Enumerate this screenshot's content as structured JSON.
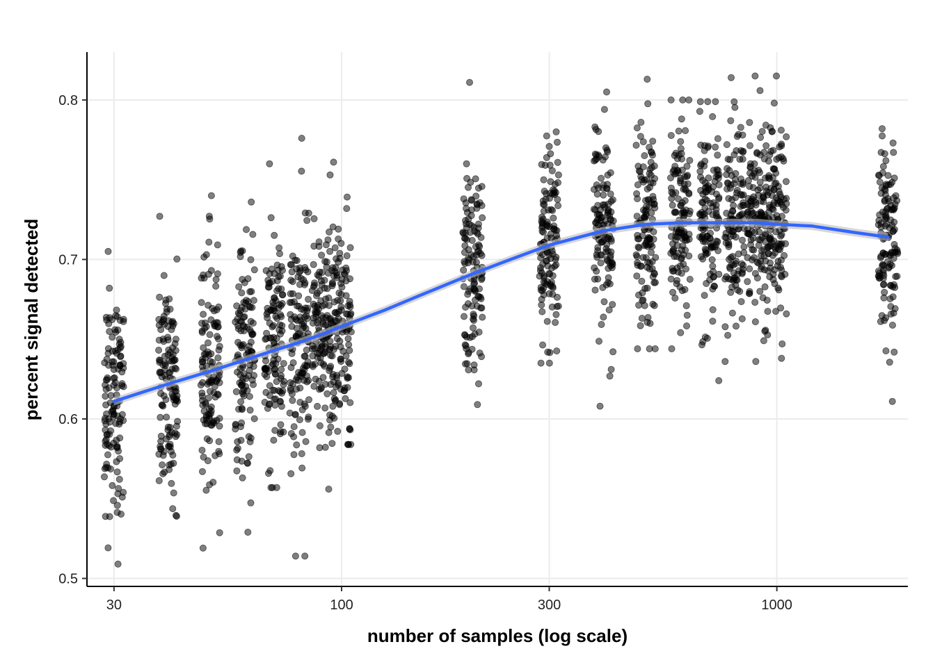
{
  "chart_data": {
    "type": "scatter",
    "title": "",
    "xlabel": "number of samples (log scale)",
    "ylabel": "percent signal detected",
    "x_scale": "log10",
    "xlim": [
      26,
      2000
    ],
    "ylim": [
      0.495,
      0.83
    ],
    "x_ticks": [
      30,
      100,
      300,
      1000
    ],
    "x_tick_labels": [
      "30",
      "100",
      "300",
      "1000"
    ],
    "y_ticks": [
      0.5,
      0.6,
      0.7,
      0.8
    ],
    "y_tick_labels": [
      "0.5",
      "0.6",
      "0.7",
      "0.8"
    ],
    "grid": true,
    "legend": "none",
    "colors": {
      "points": "#000000",
      "smooth": "#3366FF",
      "ribbon": "#BDBDBD",
      "grid": "#EBEBEB",
      "axis": "#000000"
    },
    "point_groups": [
      {
        "x": 30,
        "mean": 0.611,
        "sd": 0.035,
        "min": 0.509,
        "max": 0.705,
        "n": 130
      },
      {
        "x": 40,
        "mean": 0.622,
        "sd": 0.036,
        "min": 0.539,
        "max": 0.727,
        "n": 130
      },
      {
        "x": 50,
        "mean": 0.63,
        "sd": 0.035,
        "min": 0.519,
        "max": 0.74,
        "n": 130
      },
      {
        "x": 60,
        "mean": 0.637,
        "sd": 0.035,
        "min": 0.529,
        "max": 0.736,
        "n": 130
      },
      {
        "x": 70,
        "mean": 0.643,
        "sd": 0.034,
        "min": 0.557,
        "max": 0.76,
        "n": 130
      },
      {
        "x": 80,
        "mean": 0.648,
        "sd": 0.034,
        "min": 0.514,
        "max": 0.776,
        "n": 130
      },
      {
        "x": 90,
        "mean": 0.653,
        "sd": 0.034,
        "min": 0.556,
        "max": 0.753,
        "n": 130
      },
      {
        "x": 100,
        "mean": 0.658,
        "sd": 0.034,
        "min": 0.584,
        "max": 0.761,
        "n": 130
      },
      {
        "x": 200,
        "mean": 0.691,
        "sd": 0.031,
        "min": 0.609,
        "max": 0.811,
        "n": 130
      },
      {
        "x": 300,
        "mean": 0.709,
        "sd": 0.03,
        "min": 0.635,
        "max": 0.78,
        "n": 130
      },
      {
        "x": 400,
        "mean": 0.718,
        "sd": 0.029,
        "min": 0.608,
        "max": 0.805,
        "n": 130
      },
      {
        "x": 500,
        "mean": 0.722,
        "sd": 0.029,
        "min": 0.644,
        "max": 0.813,
        "n": 130
      },
      {
        "x": 600,
        "mean": 0.723,
        "sd": 0.029,
        "min": 0.644,
        "max": 0.8,
        "n": 130
      },
      {
        "x": 700,
        "mean": 0.723,
        "sd": 0.029,
        "min": 0.624,
        "max": 0.799,
        "n": 130
      },
      {
        "x": 800,
        "mean": 0.723,
        "sd": 0.029,
        "min": 0.636,
        "max": 0.814,
        "n": 130
      },
      {
        "x": 900,
        "mean": 0.723,
        "sd": 0.029,
        "min": 0.636,
        "max": 0.815,
        "n": 130
      },
      {
        "x": 1000,
        "mean": 0.722,
        "sd": 0.029,
        "min": 0.638,
        "max": 0.815,
        "n": 130
      },
      {
        "x": 1800,
        "mean": 0.714,
        "sd": 0.03,
        "min": 0.611,
        "max": 0.782,
        "n": 130
      }
    ],
    "smooth_line": {
      "x": [
        30,
        40,
        50,
        60,
        70,
        80,
        90,
        100,
        125,
        150,
        200,
        250,
        300,
        400,
        500,
        600,
        700,
        800,
        900,
        1000,
        1200,
        1500,
        1800
      ],
      "y": [
        0.611,
        0.622,
        0.63,
        0.637,
        0.643,
        0.648,
        0.653,
        0.658,
        0.668,
        0.677,
        0.691,
        0.701,
        0.709,
        0.718,
        0.722,
        0.723,
        0.723,
        0.723,
        0.723,
        0.722,
        0.721,
        0.717,
        0.714
      ],
      "ci": 0.0025
    }
  }
}
